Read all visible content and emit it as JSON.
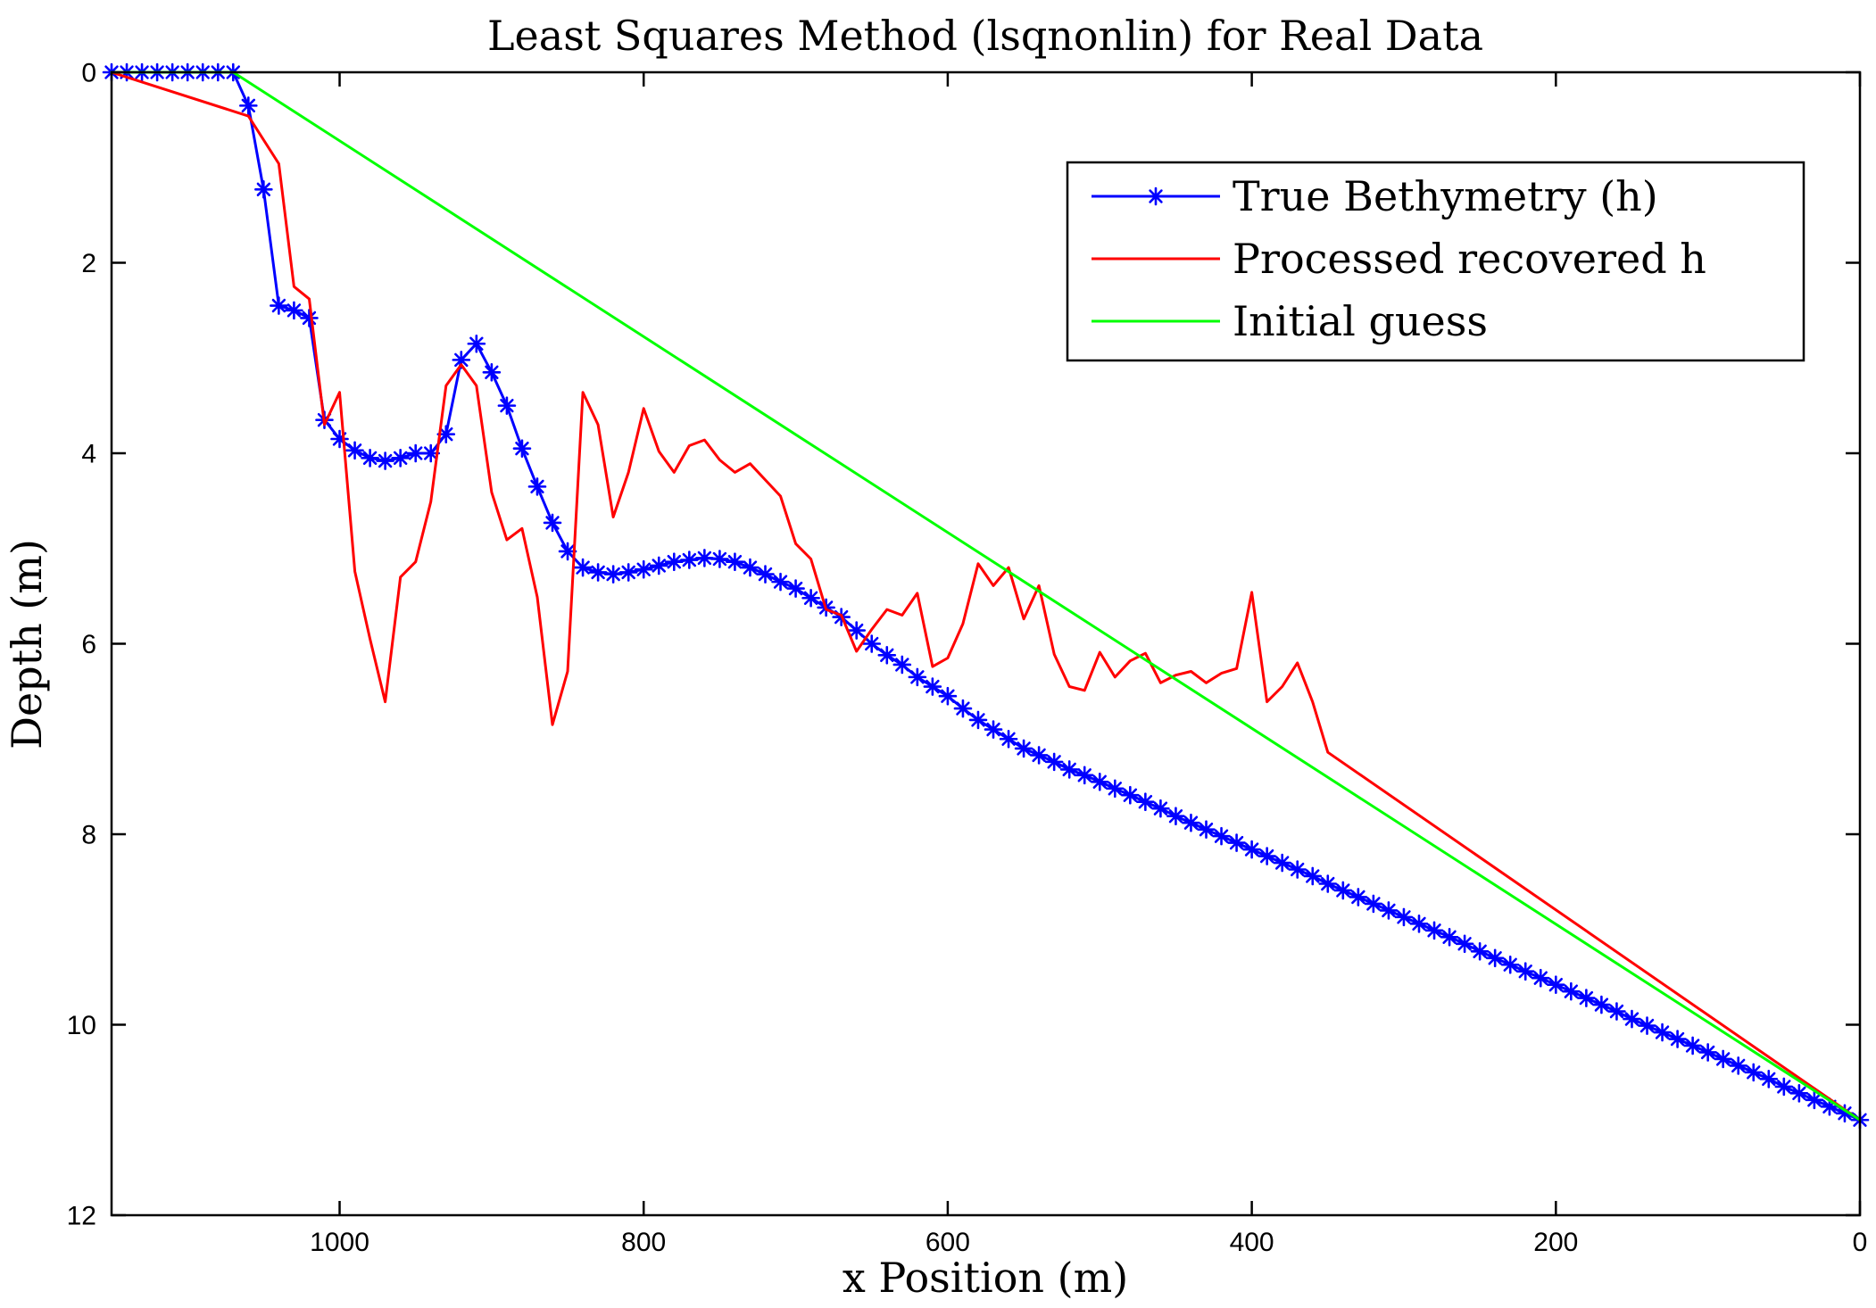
{
  "chart_data": {
    "type": "line",
    "title": "Least Squares Method (lsqnonlin) for Real Data",
    "xlabel": "x Position (m)",
    "ylabel": "Depth (m)",
    "xlim": [
      0,
      1150
    ],
    "x_reversed": true,
    "ylim": [
      0,
      12
    ],
    "y_reversed": true,
    "grid": false,
    "legend_position": "top-right",
    "xticks": [
      1000,
      800,
      600,
      400,
      200,
      0
    ],
    "xtick_labels": [
      "1000",
      "800",
      "600",
      "400",
      "200",
      "0"
    ],
    "yticks": [
      0,
      2,
      4,
      6,
      8,
      10,
      12
    ],
    "ytick_labels": [
      "0",
      "2",
      "4",
      "6",
      "8",
      "10",
      "12"
    ],
    "series": [
      {
        "name": "True Bethymetry (h)",
        "color": "#0000ff",
        "marker": "asterisk",
        "x": [
          1150,
          1140,
          1130,
          1120,
          1110,
          1100,
          1090,
          1080,
          1070,
          1060,
          1050,
          1040,
          1030,
          1020,
          1010,
          1000,
          990,
          980,
          970,
          960,
          950,
          940,
          930,
          920,
          910,
          900,
          890,
          880,
          870,
          860,
          850,
          840,
          830,
          820,
          810,
          800,
          790,
          780,
          770,
          760,
          750,
          740,
          730,
          720,
          710,
          700,
          690,
          680,
          670,
          660,
          650,
          640,
          630,
          620,
          610,
          600,
          590,
          580,
          570,
          560,
          550,
          540,
          530,
          520,
          510,
          500,
          490,
          480,
          470,
          460,
          450,
          440,
          430,
          420,
          410,
          400,
          390,
          380,
          370,
          360,
          350,
          340,
          330,
          320,
          310,
          300,
          290,
          280,
          270,
          260,
          250,
          240,
          230,
          220,
          210,
          200,
          190,
          180,
          170,
          160,
          150,
          140,
          130,
          120,
          110,
          100,
          90,
          80,
          70,
          60,
          50,
          40,
          30,
          20,
          10,
          0
        ],
        "y": [
          0,
          0,
          0,
          0,
          0,
          0,
          0,
          0,
          0,
          0.35,
          1.23,
          2.45,
          2.5,
          2.58,
          3.65,
          3.85,
          3.97,
          4.05,
          4.08,
          4.05,
          4.0,
          4.0,
          3.8,
          3.02,
          2.85,
          3.15,
          3.5,
          3.95,
          4.35,
          4.73,
          5.03,
          5.2,
          5.25,
          5.27,
          5.25,
          5.22,
          5.18,
          5.14,
          5.12,
          5.1,
          5.11,
          5.14,
          5.2,
          5.27,
          5.35,
          5.42,
          5.52,
          5.62,
          5.72,
          5.86,
          6.0,
          6.12,
          6.22,
          6.35,
          6.45,
          6.55,
          6.68,
          6.8,
          6.9,
          7.0,
          7.1,
          7.17,
          7.24,
          7.32,
          7.38,
          7.45,
          7.52,
          7.59,
          7.66,
          7.73,
          7.81,
          7.88,
          7.95,
          8.02,
          8.09,
          8.16,
          8.23,
          8.3,
          8.37,
          8.44,
          8.52,
          8.59,
          8.66,
          8.73,
          8.8,
          8.87,
          8.94,
          9.01,
          9.08,
          9.15,
          9.23,
          9.3,
          9.37,
          9.44,
          9.51,
          9.58,
          9.65,
          9.72,
          9.79,
          9.86,
          9.94,
          10.01,
          10.08,
          10.15,
          10.22,
          10.29,
          10.36,
          10.43,
          10.5,
          10.57,
          10.65,
          10.72,
          10.79,
          10.86,
          10.93,
          11.0
        ]
      },
      {
        "name": "Processed recovered h",
        "color": "#ff0000",
        "x": [
          1150,
          1060,
          1040,
          1030,
          1020,
          1010,
          1000,
          990,
          980,
          970,
          960,
          950,
          940,
          930,
          920,
          910,
          900,
          890,
          880,
          870,
          860,
          850,
          840,
          830,
          820,
          810,
          800,
          790,
          780,
          770,
          760,
          750,
          740,
          730,
          720,
          710,
          700,
          690,
          680,
          670,
          660,
          650,
          640,
          630,
          620,
          610,
          600,
          590,
          580,
          570,
          560,
          550,
          540,
          530,
          520,
          510,
          500,
          490,
          480,
          470,
          460,
          450,
          440,
          430,
          420,
          410,
          400,
          390,
          380,
          370,
          360,
          350,
          0
        ],
        "y": [
          0,
          0.46,
          0.96,
          2.25,
          2.38,
          3.7,
          3.36,
          5.24,
          5.95,
          6.61,
          5.3,
          5.14,
          4.51,
          3.29,
          3.07,
          3.29,
          4.41,
          4.91,
          4.79,
          5.51,
          6.85,
          6.29,
          3.36,
          3.7,
          4.67,
          4.2,
          3.53,
          3.98,
          4.2,
          3.92,
          3.86,
          4.07,
          4.2,
          4.11,
          4.28,
          4.45,
          4.95,
          5.11,
          5.64,
          5.7,
          6.08,
          5.85,
          5.64,
          5.7,
          5.47,
          6.24,
          6.15,
          5.79,
          5.16,
          5.39,
          5.2,
          5.74,
          5.39,
          6.11,
          6.45,
          6.49,
          6.09,
          6.35,
          6.18,
          6.1,
          6.41,
          6.33,
          6.29,
          6.41,
          6.31,
          6.26,
          5.46,
          6.61,
          6.45,
          6.2,
          6.61,
          7.14,
          11.0
        ]
      },
      {
        "name": "Initial guess",
        "color": "#00ff00",
        "x": [
          1150,
          1070,
          0
        ],
        "y": [
          0,
          0,
          11.0
        ]
      }
    ]
  }
}
